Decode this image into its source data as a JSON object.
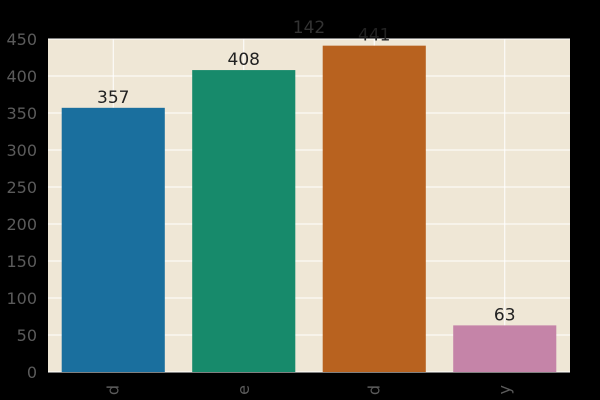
{
  "chart_data": {
    "type": "bar",
    "title": "142",
    "xlabel": "",
    "ylabel": "",
    "categories": [
      "d",
      "e",
      "d",
      "y"
    ],
    "values": [
      357,
      408,
      441,
      63
    ],
    "value_labels": [
      "357",
      "408",
      "441",
      "63"
    ],
    "ylim": [
      0,
      450
    ],
    "yticks": [
      0,
      50,
      100,
      150,
      200,
      250,
      300,
      350,
      400,
      450
    ],
    "grid": true,
    "legend": "none",
    "colors": [
      "#1a6f9e",
      "#178a6b",
      "#b8621f",
      "#c584a8"
    ],
    "plot_background": "#efe7d6",
    "grid_color": "#ffffff"
  }
}
